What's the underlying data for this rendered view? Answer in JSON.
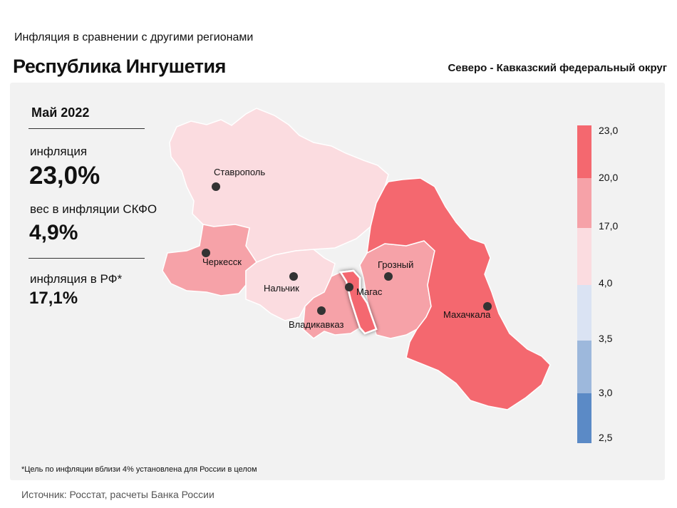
{
  "header": {
    "subtitle": "Инфляция  в сравнении  с другими  регионами",
    "title": "Республика Ингушетия",
    "district": "Северо - Кавказский федеральный округ"
  },
  "stats": {
    "period": "Май 2022",
    "inflation_label": "инфляция",
    "inflation_value": "23,0%",
    "weight_label": "вес в инфляции  СКФО",
    "weight_value": "4,9%",
    "rf_label": "инфляция  в РФ*",
    "rf_value": "17,1%"
  },
  "map": {
    "regions": [
      {
        "name": "Ставропольский край",
        "color": "#fbdce0"
      },
      {
        "name": "Карачаево-Черкесская Республика",
        "color": "#f6a2a8"
      },
      {
        "name": "Кабардино-Балкарская Республика",
        "color": "#fbdce0"
      },
      {
        "name": "Республика Северная Осетия — Алания",
        "color": "#f6a2a8"
      },
      {
        "name": "Республика Ингушетия",
        "color": "#f4686f",
        "highlighted": true
      },
      {
        "name": "Чеченская Республика",
        "color": "#f6a2a8"
      },
      {
        "name": "Республика Дагестан",
        "color": "#f4686f"
      }
    ],
    "cities": {
      "stavropol": "Ставрополь",
      "cherkessk": "Черкесск",
      "nalchik": "Нальчик",
      "vladikavkaz": "Владикавказ",
      "magas": "Магас",
      "grozny": "Грозный",
      "makhachkala": "Махачкала"
    }
  },
  "legend": {
    "bins": [
      {
        "color": "#f4686f"
      },
      {
        "color": "#f6a2a8"
      },
      {
        "color": "#fbdce0"
      },
      {
        "color": "#dae3f3"
      },
      {
        "color": "#9db8dc"
      },
      {
        "color": "#5b8ac6"
      }
    ],
    "labels": [
      "23,0",
      "20,0",
      "17,0",
      "4,0",
      "3,5",
      "3,0",
      "2,5"
    ]
  },
  "footer": {
    "footnote": "*Цель по инфляции вблизи 4% установлена для России в целом",
    "source": "Источник: Росстат, расчеты Банка России"
  }
}
